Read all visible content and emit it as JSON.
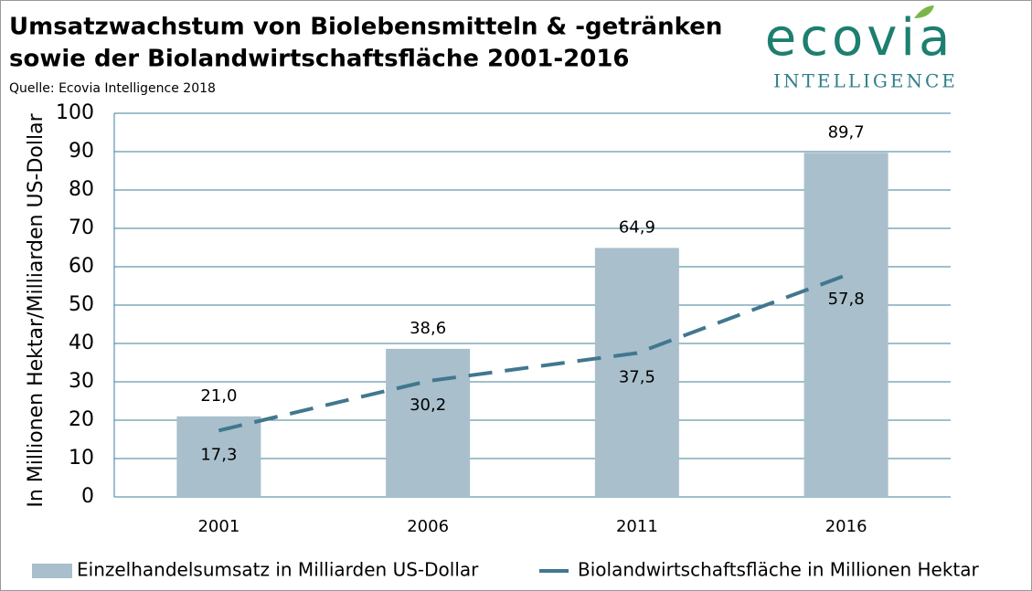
{
  "chart_data": {
    "type": "bar",
    "title": [
      "Umsatzwachstum von Biolebensmitteln & -getränken",
      "sowie der Biolandwirtschaftsfläche 2001-2016"
    ],
    "subtitle": "Quelle: Ecovia Intelligence 2018",
    "logo": {
      "name": "ecovia",
      "tagline": "INTELLIGENCE"
    },
    "y_label": "In Millionen Hektar/Milliarden US-Dollar",
    "categories": [
      "2001",
      "2006",
      "2011",
      "2016"
    ],
    "series": [
      {
        "name": "Einzelhandelsumsatz in Milliarden US-Dollar",
        "type": "bar",
        "color": "#a9bfcc",
        "values": [
          21.0,
          38.6,
          64.9,
          89.7
        ],
        "value_labels": [
          "21,0",
          "38,6",
          "64,9",
          "89,7"
        ]
      },
      {
        "name": "Biolandwirtschaftsfläche in Millionen Hektar",
        "type": "line",
        "color": "#41778f",
        "values": [
          17.3,
          30.2,
          37.5,
          57.8
        ],
        "value_labels": [
          "17,3",
          "30,2",
          "37,5",
          "57,8"
        ]
      }
    ],
    "ylim": [
      0,
      100
    ],
    "yticks": [
      0,
      10,
      20,
      30,
      40,
      50,
      60,
      70,
      80,
      90,
      100
    ],
    "grid": true,
    "legend": "bottom"
  }
}
